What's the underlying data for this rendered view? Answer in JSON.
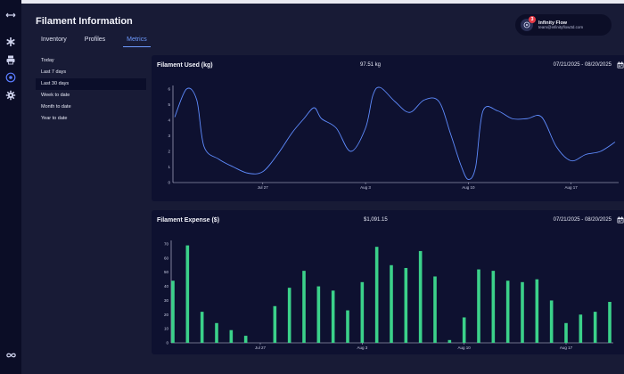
{
  "app": {
    "title": "Filament Information"
  },
  "tabs": [
    {
      "label": "Inventory"
    },
    {
      "label": "Profiles"
    },
    {
      "label": "Metrics"
    }
  ],
  "user": {
    "name": "Infinity Flow",
    "email": "team@infinityflow3d.com",
    "badge": "3"
  },
  "ranges": [
    {
      "label": "Today"
    },
    {
      "label": "Last 7 days"
    },
    {
      "label": "Last 30 days"
    },
    {
      "label": "Week to date"
    },
    {
      "label": "Month to date"
    },
    {
      "label": "Year to date"
    }
  ],
  "sidebar_icons": [
    "expand-icon",
    "asterisk-icon",
    "printer-icon",
    "filament-spool-icon",
    "gear-icon"
  ],
  "colors": {
    "line": "#5f8cff",
    "bar": "#3bd18a",
    "accent": "#6e9bff"
  },
  "cards": {
    "used": {
      "title": "Filament Used (kg)",
      "total": "97.51 kg",
      "date": "07/21/2025 - 08/20/2025"
    },
    "expense": {
      "title": "Filament Expense ($)",
      "total": "$1,091.15",
      "date": "07/21/2025 - 08/20/2025"
    }
  },
  "chart_data": [
    {
      "type": "line",
      "title": "Filament Used (kg)",
      "x_ticks": [
        "Jul 27",
        "Aug 3",
        "Aug 10",
        "Aug 17"
      ],
      "x_tick_days": [
        6,
        13,
        20,
        27
      ],
      "ylim": [
        0,
        6
      ],
      "y_ticks": [
        0,
        1,
        2,
        3,
        4,
        5,
        6
      ],
      "x": [
        0,
        0.8,
        1.5,
        2,
        3,
        4,
        5,
        6,
        7,
        8,
        8.8,
        9.5,
        10,
        11,
        12,
        13,
        13.5,
        14,
        15,
        16,
        17,
        18,
        18.8,
        19.5,
        20,
        20.5,
        21,
        22,
        23,
        24,
        25,
        26,
        27,
        28,
        29,
        30
      ],
      "values": [
        4.2,
        6.0,
        5.3,
        2.3,
        1.5,
        1.0,
        0.6,
        0.7,
        1.8,
        3.2,
        4.1,
        4.8,
        4.1,
        3.5,
        2.0,
        3.5,
        5.6,
        6.1,
        5.2,
        4.5,
        5.3,
        5.2,
        3.1,
        1.1,
        0.2,
        1.0,
        4.6,
        4.6,
        4.1,
        4.1,
        4.2,
        2.3,
        1.4,
        1.8,
        2.0,
        2.6
      ]
    },
    {
      "type": "bar",
      "title": "Filament Expense ($)",
      "x_ticks": [
        "Jul 27",
        "Aug 3",
        "Aug 10",
        "Aug 17"
      ],
      "x_tick_days": [
        6,
        13,
        20,
        27
      ],
      "ylim": [
        0,
        70
      ],
      "y_ticks": [
        0,
        10,
        20,
        30,
        40,
        50,
        60,
        70
      ],
      "days": [
        0,
        1,
        2,
        3,
        4,
        5,
        6,
        7,
        8,
        9,
        10,
        11,
        12,
        13,
        14,
        15,
        16,
        17,
        18,
        19,
        20,
        21,
        22,
        23,
        24,
        25,
        26,
        27,
        28,
        29,
        30
      ],
      "values": [
        44,
        69,
        22,
        14,
        9,
        5,
        0,
        26,
        39,
        51,
        40,
        37,
        23,
        43,
        68,
        55,
        53,
        65,
        47,
        2,
        18,
        52,
        51,
        44,
        43,
        45,
        30,
        14,
        20,
        22,
        29
      ]
    }
  ]
}
